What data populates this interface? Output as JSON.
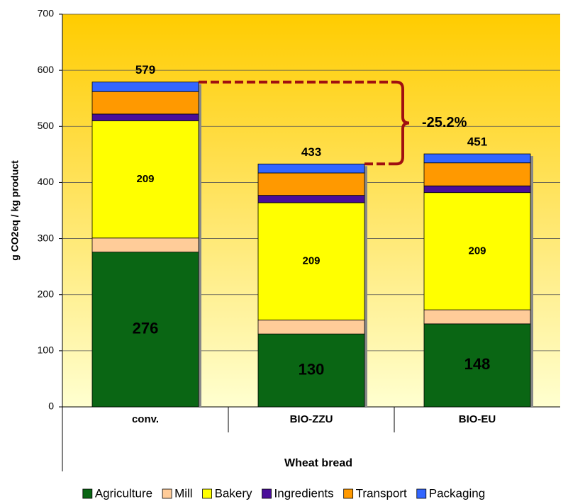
{
  "chart_data": {
    "type": "stacked_bar",
    "ylabel": "g CO2eq / kg product",
    "xlabel": "Wheat bread",
    "categories": [
      "conv.",
      "BIO-ZZU",
      "BIO-EU"
    ],
    "series": [
      {
        "name": "Agriculture",
        "color": "#0a6614",
        "values": [
          276,
          130,
          148
        ],
        "labels": true
      },
      {
        "name": "Mill",
        "color": "#ffcc99",
        "values": [
          25,
          25,
          25
        ]
      },
      {
        "name": "Bakery",
        "color": "#ffff00",
        "values": [
          209,
          209,
          209
        ],
        "labels": true
      },
      {
        "name": "Ingredients",
        "color": "#4a0d99",
        "values": [
          12,
          13,
          12
        ]
      },
      {
        "name": "Transport",
        "color": "#ff9900",
        "values": [
          40,
          40,
          41
        ]
      },
      {
        "name": "Packaging",
        "color": "#3366ff",
        "values": [
          17,
          16,
          16
        ]
      }
    ],
    "totals": [
      579,
      433,
      451
    ],
    "annotation": "-25.2%",
    "ylim": [
      0,
      700
    ],
    "yticks": [
      0,
      100,
      200,
      300,
      400,
      500,
      600,
      700
    ],
    "grid": true,
    "legend": "bottom"
  }
}
